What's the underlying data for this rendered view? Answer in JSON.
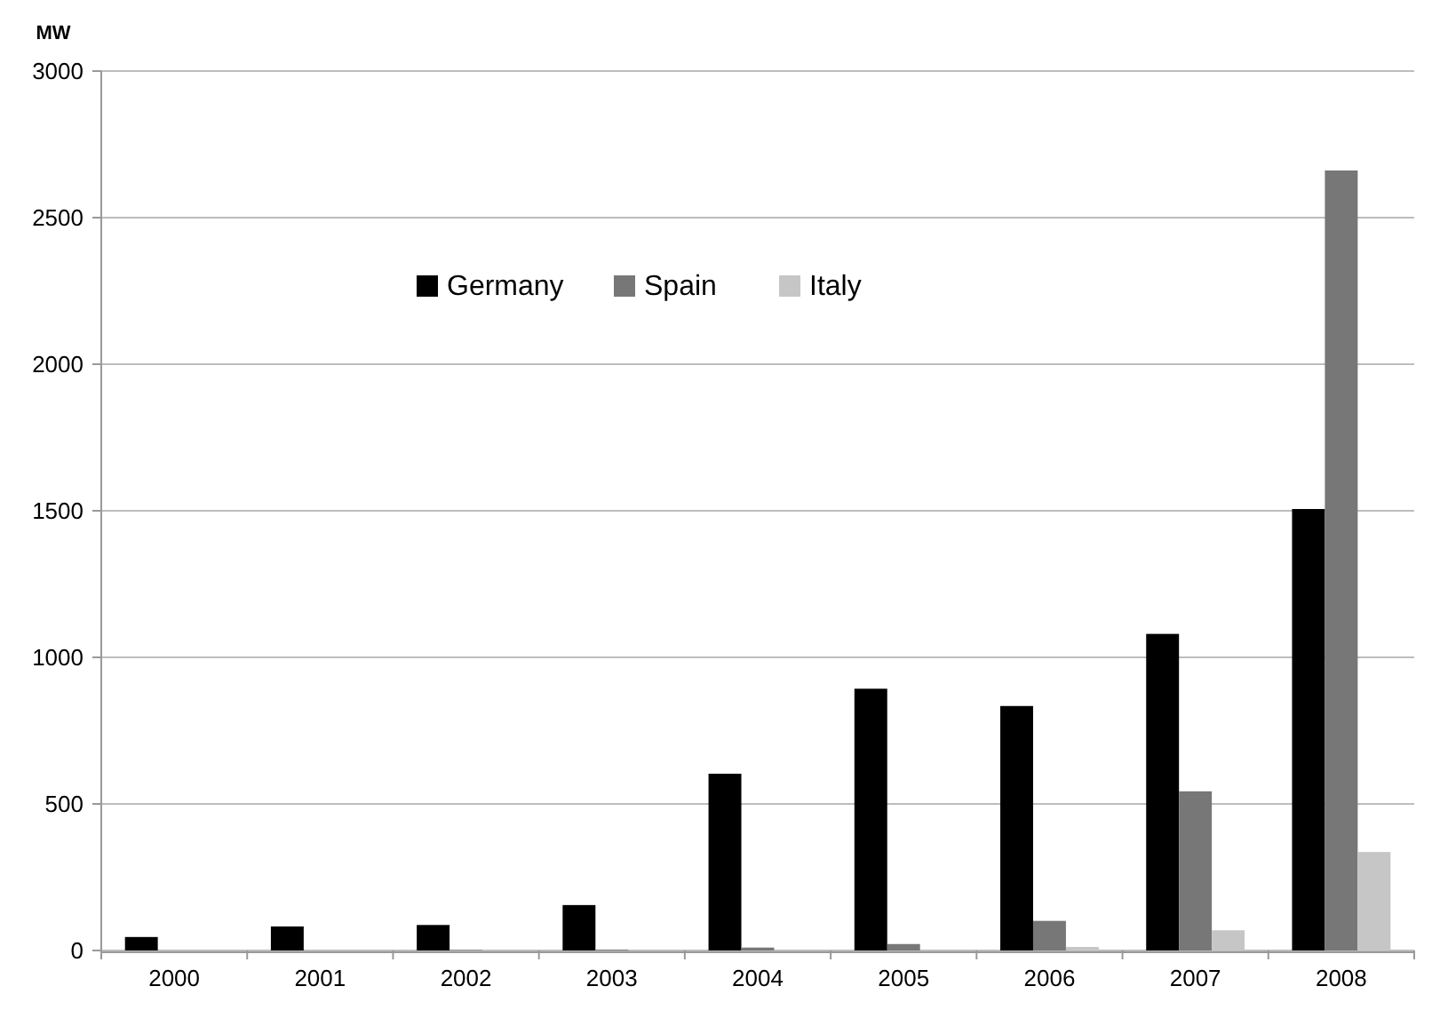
{
  "chart_data": {
    "type": "bar",
    "ylabel": "MW",
    "categories": [
      "2000",
      "2001",
      "2002",
      "2003",
      "2004",
      "2005",
      "2006",
      "2007",
      "2008"
    ],
    "series": [
      {
        "name": "Germany",
        "color": "#000000",
        "values": [
          46,
          82,
          87,
          155,
          603,
          893,
          834,
          1080,
          1506
        ]
      },
      {
        "name": "Spain",
        "color": "#777777",
        "values": [
          0,
          0,
          2,
          3,
          10,
          22,
          101,
          543,
          2661
        ]
      },
      {
        "name": "Italy",
        "color": "#c6c6c6",
        "values": [
          0,
          0,
          0,
          null,
          null,
          null,
          12,
          69,
          336
        ]
      }
    ],
    "ylim": [
      0,
      3000
    ],
    "yticks": [
      0,
      500,
      1000,
      1500,
      2000,
      2500,
      3000
    ],
    "grid": "y",
    "legend": "top"
  }
}
